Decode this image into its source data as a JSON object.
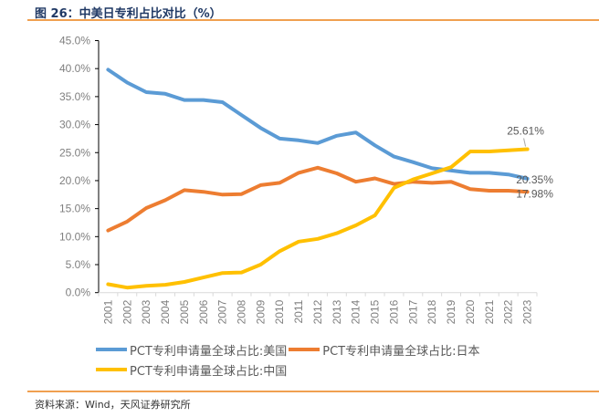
{
  "figure": {
    "title": "图 26：中美日专利占比对比（%）",
    "source": "资料来源：Wind，天风证券研究所"
  },
  "chart_data": {
    "type": "line",
    "title": "中美日专利占比对比（%）",
    "xlabel": "",
    "ylabel": "",
    "ylim": [
      0,
      45
    ],
    "yticks": [
      "0.0%",
      "5.0%",
      "10.0%",
      "15.0%",
      "20.0%",
      "25.0%",
      "30.0%",
      "35.0%",
      "40.0%",
      "45.0%"
    ],
    "ytick_values": [
      0,
      5,
      10,
      15,
      20,
      25,
      30,
      35,
      40,
      45
    ],
    "grid": false,
    "legend_position": "bottom",
    "categories": [
      "2001",
      "2002",
      "2003",
      "2004",
      "2005",
      "2006",
      "2007",
      "2008",
      "2009",
      "2010",
      "2011",
      "2012",
      "2013",
      "2014",
      "2015",
      "2016",
      "2017",
      "2018",
      "2019",
      "2020",
      "2021",
      "2022",
      "2023"
    ],
    "series": [
      {
        "name": "PCT专利申请量全球占比:美国",
        "color": "#5b9bd5",
        "values": [
          39.8,
          37.5,
          35.8,
          35.5,
          34.4,
          34.4,
          34.0,
          31.7,
          29.4,
          27.5,
          27.2,
          26.7,
          28.0,
          28.6,
          26.3,
          24.3,
          23.3,
          22.2,
          21.8,
          21.4,
          21.4,
          21.1,
          20.35
        ],
        "end_label": "20.35%"
      },
      {
        "name": "PCT专利申请量全球占比:日本",
        "color": "#ed7d31",
        "values": [
          11.1,
          12.7,
          15.1,
          16.5,
          18.3,
          18.0,
          17.5,
          17.6,
          19.2,
          19.6,
          21.4,
          22.3,
          21.3,
          19.8,
          20.4,
          19.4,
          19.8,
          19.6,
          19.8,
          18.5,
          18.2,
          18.2,
          17.98
        ],
        "end_label": "17.98%"
      },
      {
        "name": "PCT专利申请量全球占比:中国",
        "color": "#ffc000",
        "values": [
          1.5,
          0.9,
          1.2,
          1.4,
          1.9,
          2.7,
          3.5,
          3.6,
          5.0,
          7.4,
          9.1,
          9.6,
          10.6,
          12.0,
          13.8,
          18.7,
          20.2,
          21.3,
          22.4,
          25.2,
          25.2,
          25.4,
          25.61
        ],
        "end_label": "25.61%"
      }
    ]
  }
}
